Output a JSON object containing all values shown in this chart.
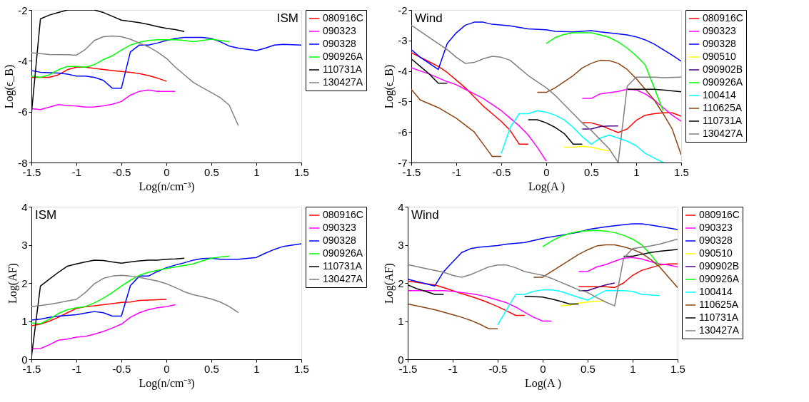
{
  "chart_data": [
    {
      "type": "line",
      "xlabel": "Log(n/cm⁻³)",
      "ylabel": "Log(ϵ_B)",
      "annotations": [
        "ISM"
      ],
      "xlim": [
        -1.5,
        1.5
      ],
      "ylim": [
        -8,
        -2
      ],
      "xticks": [
        -1.5,
        -1,
        -0.5,
        0,
        0.5,
        1,
        1.5
      ],
      "yticks": [
        -8,
        -6,
        -4,
        -2
      ],
      "grid": false,
      "legend": "right",
      "line_style": "solid",
      "series": [
        {
          "name": "080916C",
          "color": "#ff0000",
          "x": [
            -1.5,
            -1.3,
            -1.2,
            -1.1,
            -1.0,
            -0.9,
            -0.8,
            -0.6,
            -0.4,
            -0.3,
            -0.2,
            -0.1,
            0
          ],
          "values": [
            -4.65,
            -4.65,
            -4.55,
            -4.35,
            -4.25,
            -4.25,
            -4.3,
            -4.38,
            -4.45,
            -4.5,
            -4.58,
            -4.68,
            -4.8
          ]
        },
        {
          "name": "090323",
          "color": "#ff00ff",
          "x": [
            -1.5,
            -1.4,
            -1.3,
            -1.2,
            -1.1,
            -1.0,
            -0.9,
            -0.8,
            -0.7,
            -0.6,
            -0.5,
            -0.4,
            -0.3,
            -0.2,
            -0.1,
            0,
            0.1
          ],
          "values": [
            -5.88,
            -5.92,
            -5.82,
            -5.72,
            -5.76,
            -5.78,
            -5.82,
            -5.81,
            -5.77,
            -5.71,
            -5.6,
            -5.35,
            -5.2,
            -5.15,
            -5.2,
            -5.2,
            -5.2
          ]
        },
        {
          "name": "090328",
          "color": "#0000ff",
          "x": [
            -1.5,
            -1.4,
            -1.2,
            -1.1,
            -1.0,
            -0.9,
            -0.8,
            -0.7,
            -0.6,
            -0.5,
            -0.4,
            -0.3,
            -0.2,
            -0.1,
            0,
            0.1,
            0.2,
            0.4,
            0.5,
            0.6,
            0.7,
            0.8,
            1.0,
            1.1,
            1.2,
            1.3,
            1.5
          ],
          "values": [
            -4.38,
            -4.45,
            -4.48,
            -4.52,
            -4.6,
            -4.6,
            -4.65,
            -4.77,
            -5.08,
            -5.08,
            -3.65,
            -3.38,
            -3.38,
            -3.3,
            -3.2,
            -3.12,
            -3.08,
            -3.08,
            -3.12,
            -3.25,
            -3.42,
            -3.5,
            -3.6,
            -3.5,
            -3.38,
            -3.35,
            -3.38
          ]
        },
        {
          "name": "090926A",
          "color": "#00ff00",
          "x": [
            -1.5,
            -1.4,
            -1.3,
            -1.2,
            -1.1,
            -1.0,
            -0.9,
            -0.8,
            -0.7,
            -0.6,
            -0.5,
            -0.4,
            -0.3,
            -0.2,
            -0.1,
            0,
            0.1,
            0.2,
            0.3,
            0.4,
            0.5,
            0.6,
            0.7
          ],
          "values": [
            -4.6,
            -4.65,
            -4.55,
            -4.35,
            -4.22,
            -4.22,
            -4.25,
            -4.15,
            -3.95,
            -3.8,
            -3.58,
            -3.38,
            -3.27,
            -3.2,
            -3.17,
            -3.17,
            -3.17,
            -3.2,
            -3.25,
            -3.2,
            -3.15,
            -3.2,
            -3.25
          ]
        },
        {
          "name": "110731A",
          "color": "#000000",
          "x": [
            -1.5,
            -1.4,
            -1.3,
            -1.2,
            -1.1,
            -0.8,
            -0.7,
            -0.6,
            -0.5,
            -0.4,
            -0.3,
            -0.2,
            -0.1,
            0,
            0.1,
            0.2
          ],
          "values": [
            -6.1,
            -2.35,
            -2.2,
            -2.1,
            -2.0,
            -2.0,
            -2.1,
            -2.25,
            -2.4,
            -2.45,
            -2.5,
            -2.57,
            -2.65,
            -2.72,
            -2.77,
            -2.85
          ]
        },
        {
          "name": "130427A",
          "color": "#808080",
          "x": [
            -1.5,
            -1.3,
            -1.1,
            -1.0,
            -0.9,
            -0.8,
            -0.7,
            -0.6,
            -0.5,
            -0.4,
            -0.3,
            -0.2,
            -0.1,
            0,
            0.1,
            0.2,
            0.3,
            0.4,
            0.5,
            0.6,
            0.7,
            0.8
          ],
          "values": [
            -3.68,
            -3.75,
            -3.76,
            -3.78,
            -3.55,
            -3.2,
            -3.05,
            -3.02,
            -3.05,
            -3.15,
            -3.3,
            -3.45,
            -3.65,
            -3.9,
            -4.25,
            -4.55,
            -4.85,
            -5.05,
            -5.25,
            -5.45,
            -5.75,
            -6.55
          ]
        }
      ]
    },
    {
      "type": "line",
      "xlabel": "Log(A )",
      "ylabel": "Log(ϵ_B)",
      "annotations": [
        "Wind"
      ],
      "xlim": [
        -1.5,
        1.5
      ],
      "ylim": [
        -7,
        -2
      ],
      "xticks": [
        -1.5,
        -1,
        -0.5,
        0,
        0.5,
        1,
        1.5
      ],
      "yticks": [
        -7,
        -6,
        -5,
        -4,
        -3,
        -2
      ],
      "grid": false,
      "legend": "right",
      "line_style": "solid",
      "series": [
        {
          "name": "080916C",
          "color": "#ff0000",
          "x": [
            -1.5,
            -1.3,
            -1.2,
            -1.1,
            -1.0,
            -0.9,
            -0.8,
            -0.7,
            -0.6,
            -0.5,
            -0.4,
            -0.3,
            -0.2,
            null,
            0.4,
            0.5,
            0.6,
            0.7,
            0.8,
            0.9,
            1.0,
            1.1,
            1.2,
            1.3,
            1.4,
            1.5
          ],
          "values": [
            -3.4,
            -3.7,
            -3.85,
            -4.05,
            -4.3,
            -4.55,
            -4.85,
            -5.15,
            -5.4,
            -5.65,
            -5.95,
            -6.4,
            -6.4,
            null,
            -5.7,
            -5.7,
            -5.78,
            -5.9,
            -6.02,
            -5.9,
            -5.62,
            -5.45,
            -5.4,
            -5.37,
            -5.37,
            -5.48
          ]
        },
        {
          "name": "090323",
          "color": "#ff00ff",
          "x": [
            -1.5,
            -1.3,
            -1.1,
            -1.0,
            -0.9,
            -0.8,
            -0.7,
            -0.6,
            -0.5,
            -0.4,
            -0.3,
            -0.2,
            -0.1,
            0,
            null,
            0.4,
            0.5,
            0.6,
            0.8,
            0.9,
            1.0,
            1.1,
            1.2,
            1.3,
            1.4,
            1.5
          ],
          "values": [
            -3.9,
            -4.1,
            -4.35,
            -4.45,
            -4.6,
            -4.75,
            -4.9,
            -5.1,
            -5.3,
            -5.55,
            -5.8,
            -6.1,
            -6.5,
            -6.95,
            null,
            -4.9,
            -4.9,
            -4.75,
            -4.67,
            -4.6,
            -4.62,
            -4.75,
            -4.95,
            -5.2,
            -5.45,
            -5.65
          ]
        },
        {
          "name": "090328",
          "color": "#0000ff",
          "x": [
            -1.5,
            -1.4,
            -1.3,
            -1.2,
            -1.1,
            -1.0,
            -0.9,
            -0.8,
            -0.7,
            -0.6,
            -0.4,
            -0.3,
            -0.2,
            0,
            0.1,
            0.3,
            0.5,
            0.6,
            0.8,
            0.9,
            1.0,
            1.1,
            1.2,
            1.3,
            1.4,
            1.5
          ],
          "values": [
            -3.3,
            -3.55,
            -3.75,
            -3.95,
            -3.1,
            -2.75,
            -2.5,
            -2.4,
            -2.4,
            -2.47,
            -2.52,
            -2.57,
            -2.62,
            -2.65,
            -2.7,
            -2.72,
            -2.68,
            -2.72,
            -2.78,
            -2.82,
            -2.88,
            -2.98,
            -3.12,
            -3.3,
            -3.48,
            -3.68
          ]
        },
        {
          "name": "090510",
          "color": "#ffff00",
          "x": [
            0.2,
            0.3,
            0.4,
            0.5,
            0.6,
            0.7
          ],
          "values": [
            -6.5,
            -6.5,
            -6.47,
            -6.5,
            -6.57,
            -6.62
          ]
        },
        {
          "name": "090902B",
          "color": "#4b0082",
          "x": [
            0.4,
            0.5,
            0.6,
            0.7,
            0.8
          ],
          "values": [
            -5.9,
            -5.9,
            -5.82,
            -5.8,
            -5.8
          ]
        },
        {
          "name": "090926A",
          "color": "#00ff00",
          "x": [
            0,
            0.1,
            0.2,
            0.3,
            0.5,
            0.6,
            0.7,
            0.8,
            0.9,
            1.0,
            1.1,
            1.2,
            1.3
          ],
          "values": [
            -3.1,
            -2.9,
            -2.8,
            -2.75,
            -2.75,
            -2.82,
            -2.9,
            -3.05,
            -3.25,
            -3.5,
            -3.8,
            -4.55,
            -5.3
          ]
        },
        {
          "name": "100414",
          "color": "#00ffff",
          "x": [
            -0.5,
            -0.4,
            -0.3,
            -0.2,
            -0.1,
            0,
            0.1,
            0.2,
            0.3,
            0.4,
            0.5,
            0.6,
            0.7,
            0.8,
            0.9,
            1.0,
            1.1,
            1.2,
            1.3
          ],
          "values": [
            -6.7,
            -5.85,
            -5.4,
            -5.4,
            -5.3,
            -5.35,
            -5.45,
            -5.6,
            -5.85,
            -6.15,
            -6.4,
            -6.2,
            -6.1,
            -6.2,
            -6.3,
            -6.45,
            -6.7,
            -6.85,
            -7.0
          ]
        },
        {
          "name": "110625A",
          "color": "#8b4513",
          "x": [
            -1.5,
            -1.4,
            -1.2,
            -1.0,
            -0.8,
            -0.7,
            -0.6,
            -0.5,
            null,
            -0.1,
            0,
            0.1,
            0.2,
            0.3,
            0.4,
            0.5,
            0.6,
            0.7,
            0.8,
            0.9,
            1.0,
            1.1,
            1.2,
            1.3,
            1.4,
            1.5
          ],
          "values": [
            -4.6,
            -4.95,
            -5.2,
            -5.55,
            -6.0,
            -6.4,
            -6.8,
            -6.8,
            null,
            -4.7,
            -4.7,
            -4.55,
            -4.35,
            -4.15,
            -3.9,
            -3.75,
            -3.65,
            -3.66,
            -3.75,
            -3.95,
            -4.25,
            -4.6,
            -4.95,
            -5.4,
            -5.9,
            -6.75
          ]
        },
        {
          "name": "110731A",
          "color": "#000000",
          "x": [
            -1.5,
            -1.4,
            -1.3,
            -1.2,
            -1.1,
            null,
            -0.2,
            -0.1,
            0,
            0.1,
            0.2,
            0.3,
            0.4,
            null,
            0.9,
            1.0,
            1.2,
            1.3,
            1.5
          ],
          "values": [
            -3.6,
            -3.85,
            -4.1,
            -4.4,
            -4.4,
            null,
            -5.6,
            -5.6,
            -5.7,
            -5.85,
            -6.05,
            -6.4,
            -6.4,
            null,
            -4.6,
            -4.6,
            -4.6,
            -4.62,
            -4.68
          ]
        },
        {
          "name": "130427A",
          "color": "#808080",
          "x": [
            -1.5,
            -1.3,
            -1.1,
            -1.0,
            -0.9,
            -0.8,
            -0.7,
            -0.6,
            -0.5,
            -0.4,
            -0.3,
            -0.2,
            -0.1,
            0,
            0.1,
            0.2,
            0.3,
            0.4,
            0.5,
            0.6,
            0.7,
            0.8,
            0.9,
            1.0,
            1.2,
            1.3,
            1.5
          ],
          "values": [
            -2.5,
            -2.9,
            -3.3,
            -3.55,
            -3.75,
            -3.72,
            -3.6,
            -3.52,
            -3.55,
            -3.65,
            -3.9,
            -4.15,
            -4.35,
            -4.55,
            -4.8,
            -5.1,
            -5.4,
            -5.7,
            -5.95,
            -6.25,
            -6.55,
            -7.0,
            -4.5,
            -4.2,
            -4.2,
            -4.22,
            -4.2
          ]
        }
      ]
    },
    {
      "type": "line",
      "xlabel": "Log(n/cm⁻³)",
      "ylabel": "Log(AF)",
      "annotations": [
        "ISM"
      ],
      "xlim": [
        -1.5,
        1.5
      ],
      "ylim": [
        0,
        4
      ],
      "xticks": [
        -1.5,
        -1,
        -0.5,
        0,
        0.5,
        1,
        1.5
      ],
      "yticks": [
        0,
        1,
        2,
        3,
        4
      ],
      "grid": false,
      "legend": "right",
      "line_style": "solid",
      "series": [
        {
          "name": "080916C",
          "color": "#ff0000",
          "x": [
            -1.5,
            -1.4,
            -1.3,
            -1.2,
            -1.1,
            -1.0,
            -0.9,
            -0.8,
            -0.7,
            -0.6,
            -0.5,
            -0.4,
            -0.3,
            -0.2,
            -0.1,
            0
          ],
          "values": [
            0.88,
            0.92,
            1.0,
            1.1,
            1.22,
            1.33,
            1.38,
            1.4,
            1.43,
            1.46,
            1.49,
            1.5,
            1.54,
            1.55,
            1.56,
            1.57
          ]
        },
        {
          "name": "090323",
          "color": "#ff00ff",
          "x": [
            -1.5,
            -1.4,
            -1.3,
            -1.2,
            -1.1,
            -1.0,
            -0.9,
            -0.8,
            -0.7,
            -0.6,
            -0.5,
            -0.4,
            -0.3,
            -0.2,
            -0.1,
            0,
            0.1
          ],
          "values": [
            0.27,
            0.28,
            0.38,
            0.5,
            0.53,
            0.58,
            0.6,
            0.66,
            0.73,
            0.82,
            0.92,
            1.1,
            1.22,
            1.3,
            1.35,
            1.38,
            1.43
          ]
        },
        {
          "name": "090328",
          "color": "#0000ff",
          "x": [
            -1.5,
            -1.4,
            -1.3,
            -1.2,
            -1.1,
            -1.0,
            -0.9,
            -0.8,
            -0.7,
            -0.6,
            -0.5,
            -0.4,
            -0.3,
            -0.2,
            -0.1,
            0,
            0.1,
            0.2,
            0.3,
            0.4,
            0.5,
            0.6,
            0.8,
            1.0,
            1.1,
            1.2,
            1.3,
            1.5
          ],
          "values": [
            1.03,
            1.05,
            1.1,
            1.13,
            1.15,
            1.17,
            1.21,
            1.25,
            1.22,
            1.13,
            1.13,
            1.93,
            2.18,
            2.18,
            2.3,
            2.4,
            2.47,
            2.53,
            2.6,
            2.64,
            2.65,
            2.62,
            2.62,
            2.67,
            2.78,
            2.88,
            2.96,
            3.03
          ]
        },
        {
          "name": "090926A",
          "color": "#00ff00",
          "x": [
            -1.5,
            -1.4,
            -1.3,
            -1.2,
            -1.1,
            -1.0,
            -0.9,
            -0.8,
            -0.7,
            -0.6,
            -0.5,
            -0.4,
            -0.3,
            -0.2,
            -0.1,
            0,
            0.1,
            0.2,
            0.3,
            0.4,
            0.5,
            0.6,
            0.7
          ],
          "values": [
            0.95,
            0.93,
            1.05,
            1.2,
            1.3,
            1.35,
            1.38,
            1.48,
            1.6,
            1.75,
            1.92,
            2.07,
            2.2,
            2.28,
            2.33,
            2.38,
            2.42,
            2.46,
            2.5,
            2.58,
            2.65,
            2.68,
            2.7
          ]
        },
        {
          "name": "110731A",
          "color": "#000000",
          "x": [
            -1.5,
            -1.4,
            -1.3,
            -1.2,
            -1.1,
            -1.0,
            -0.9,
            -0.8,
            -0.7,
            -0.6,
            -0.5,
            -0.4,
            -0.3,
            -0.2,
            -0.1,
            0,
            0.1,
            0.2
          ],
          "values": [
            0.05,
            1.92,
            2.1,
            2.28,
            2.44,
            2.5,
            2.55,
            2.6,
            2.59,
            2.55,
            2.52,
            2.55,
            2.58,
            2.6,
            2.6,
            2.62,
            2.63,
            2.65
          ]
        },
        {
          "name": "130427A",
          "color": "#808080",
          "x": [
            -1.5,
            -1.3,
            -1.2,
            -1.1,
            -1.0,
            -0.9,
            -0.8,
            -0.7,
            -0.6,
            -0.5,
            -0.4,
            -0.3,
            -0.2,
            -0.1,
            0,
            0.1,
            0.2,
            0.3,
            0.4,
            0.5,
            0.6,
            0.7,
            0.8
          ],
          "values": [
            1.38,
            1.44,
            1.48,
            1.53,
            1.57,
            1.75,
            1.98,
            2.12,
            2.18,
            2.2,
            2.18,
            2.15,
            2.1,
            2.05,
            1.98,
            1.88,
            1.77,
            1.69,
            1.64,
            1.58,
            1.5,
            1.38,
            1.22
          ]
        }
      ]
    },
    {
      "type": "line",
      "xlabel": "Log(A )",
      "ylabel": "Log(AF)",
      "annotations": [
        "Wind"
      ],
      "xlim": [
        -1.5,
        1.5
      ],
      "ylim": [
        0,
        4
      ],
      "xticks": [
        -1.5,
        -1,
        -0.5,
        0,
        0.5,
        1,
        1.5
      ],
      "yticks": [
        0,
        1,
        2,
        3,
        4
      ],
      "grid": false,
      "legend": "right",
      "line_style": "solid",
      "series": [
        {
          "name": "080916C",
          "color": "#ff0000",
          "x": [
            -1.5,
            -1.3,
            -1.2,
            -1.1,
            -1.0,
            -0.9,
            -0.8,
            -0.7,
            -0.6,
            -0.5,
            -0.4,
            -0.3,
            -0.2,
            null,
            0.4,
            0.6,
            0.7,
            0.8,
            0.9,
            1.0,
            1.1,
            1.2,
            1.3,
            1.4,
            1.5
          ],
          "values": [
            2.05,
            1.98,
            1.95,
            1.88,
            1.8,
            1.72,
            1.65,
            1.57,
            1.48,
            1.38,
            1.27,
            1.15,
            1.15,
            null,
            1.9,
            1.9,
            1.9,
            1.88,
            2.0,
            2.2,
            2.33,
            2.4,
            2.47,
            2.5,
            2.5
          ]
        },
        {
          "name": "090323",
          "color": "#ff00ff",
          "x": [
            -1.5,
            -1.1,
            -1.0,
            -0.9,
            -0.8,
            -0.7,
            -0.6,
            -0.5,
            -0.4,
            -0.3,
            -0.2,
            -0.1,
            0,
            0.1,
            null,
            0.4,
            0.5,
            0.6,
            0.7,
            0.8,
            0.9,
            1.0,
            1.1,
            1.2,
            1.3,
            1.4,
            1.5
          ],
          "values": [
            1.8,
            1.8,
            1.78,
            1.75,
            1.72,
            1.68,
            1.62,
            1.55,
            1.48,
            1.37,
            1.23,
            1.1,
            1.0,
            1.0,
            null,
            2.3,
            2.3,
            2.42,
            2.48,
            2.57,
            2.65,
            2.67,
            2.63,
            2.56,
            2.5,
            2.47,
            2.42
          ]
        },
        {
          "name": "090328",
          "color": "#0000ff",
          "x": [
            -1.5,
            -1.2,
            -1.1,
            -1.0,
            -0.9,
            -0.8,
            -0.7,
            -0.5,
            -0.4,
            -0.2,
            0,
            0.2,
            0.4,
            0.5,
            0.7,
            0.9,
            1.0,
            1.1,
            1.2,
            1.3,
            1.5
          ],
          "values": [
            2.1,
            1.92,
            2.3,
            2.55,
            2.8,
            2.9,
            2.94,
            2.98,
            3.02,
            3.06,
            3.17,
            3.25,
            3.33,
            3.4,
            3.47,
            3.53,
            3.55,
            3.55,
            3.52,
            3.48,
            3.4
          ]
        },
        {
          "name": "090510",
          "color": "#ffff00",
          "x": [
            0.2,
            0.3,
            0.4,
            0.5,
            0.6,
            0.7
          ],
          "values": [
            1.4,
            1.42,
            1.47,
            1.5,
            1.52,
            1.53
          ]
        },
        {
          "name": "090902B",
          "color": "#4b0082",
          "x": [
            0.4,
            0.5,
            0.6,
            0.7,
            0.8
          ],
          "values": [
            1.8,
            1.8,
            1.88,
            1.95,
            2.0
          ]
        },
        {
          "name": "090926A",
          "color": "#00ff00",
          "x": [
            0,
            0.1,
            0.2,
            0.3,
            0.4,
            0.5,
            0.6,
            0.7,
            0.8,
            0.9,
            1.0,
            1.1,
            1.2,
            1.3
          ],
          "values": [
            2.95,
            3.1,
            3.22,
            3.3,
            3.35,
            3.37,
            3.38,
            3.36,
            3.32,
            3.25,
            3.15,
            3.0,
            2.75,
            2.45
          ]
        },
        {
          "name": "100414",
          "color": "#00ffff",
          "x": [
            -0.5,
            -0.4,
            -0.3,
            -0.2,
            -0.1,
            0,
            0.1,
            0.2,
            0.3,
            0.4,
            0.5,
            0.6,
            0.7,
            0.8,
            0.9,
            1.0,
            1.1,
            1.3
          ],
          "values": [
            0.9,
            1.3,
            1.7,
            1.7,
            1.78,
            1.82,
            1.82,
            1.78,
            1.7,
            1.62,
            1.55,
            1.68,
            1.8,
            1.8,
            1.8,
            1.78,
            1.7,
            1.67
          ]
        },
        {
          "name": "110625A",
          "color": "#8b4513",
          "x": [
            -1.5,
            -1.3,
            -1.2,
            -1.0,
            -0.9,
            -0.8,
            -0.7,
            -0.6,
            -0.5,
            null,
            -0.1,
            0,
            0.1,
            0.2,
            0.3,
            0.4,
            0.5,
            0.6,
            0.7,
            0.8,
            0.9,
            1.0,
            1.1,
            1.2,
            1.3,
            1.4,
            1.5
          ],
          "values": [
            1.45,
            1.35,
            1.3,
            1.17,
            1.1,
            1.02,
            0.92,
            0.8,
            0.8,
            null,
            2.15,
            2.15,
            2.3,
            2.45,
            2.6,
            2.75,
            2.87,
            2.97,
            3.0,
            3.0,
            2.95,
            2.88,
            2.78,
            2.62,
            2.42,
            2.15,
            1.88
          ]
        },
        {
          "name": "110731A",
          "color": "#000000",
          "x": [
            -1.5,
            -1.4,
            -1.3,
            -1.2,
            -1.1,
            null,
            -0.2,
            0,
            0.1,
            0.2,
            0.3,
            0.4,
            null,
            0.9,
            1.0,
            1.1,
            1.2,
            1.3,
            1.5
          ],
          "values": [
            1.95,
            1.85,
            1.78,
            1.7,
            1.7,
            null,
            1.65,
            1.63,
            1.58,
            1.52,
            1.45,
            1.45,
            null,
            2.7,
            2.7,
            2.75,
            2.8,
            2.83,
            2.88
          ]
        },
        {
          "name": "130427A",
          "color": "#808080",
          "x": [
            -1.5,
            -1.3,
            -1.1,
            -1.0,
            -0.9,
            -0.8,
            -0.7,
            -0.6,
            -0.5,
            -0.4,
            -0.3,
            -0.2,
            -0.1,
            0,
            0.1,
            0.2,
            0.3,
            0.4,
            0.5,
            0.6,
            0.7,
            0.8,
            0.9,
            1.0,
            1.2,
            1.3,
            1.5
          ],
          "values": [
            2.48,
            2.38,
            2.28,
            2.2,
            2.15,
            2.22,
            2.32,
            2.42,
            2.47,
            2.47,
            2.4,
            2.3,
            2.25,
            2.2,
            2.12,
            2.02,
            1.92,
            1.82,
            1.75,
            1.62,
            1.5,
            1.4,
            2.65,
            2.9,
            2.97,
            3.02,
            3.15
          ]
        }
      ]
    }
  ]
}
